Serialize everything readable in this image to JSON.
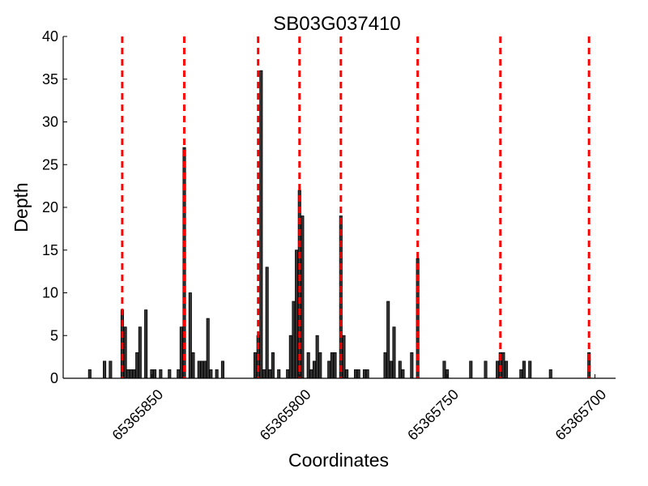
{
  "chart_data": {
    "type": "bar",
    "title": "SB03G037410",
    "xlabel": "Coordinates",
    "ylabel": "Depth",
    "xlim": [
      65365880,
      65365693
    ],
    "ylim": [
      0,
      40
    ],
    "x_inverted": true,
    "grid": false,
    "bar_color": "#333333",
    "marker_color": "#ff0000",
    "yticks": [
      0,
      5,
      10,
      15,
      20,
      25,
      30,
      35,
      40
    ],
    "xticks": [
      65365850,
      65365800,
      65365750,
      65365700
    ],
    "xtick_labels": [
      "65365850",
      "65365800",
      "65365750",
      "65365700"
    ],
    "ytick_labels": [
      "0",
      "5",
      "10",
      "15",
      "20",
      "25",
      "30",
      "35",
      "40"
    ],
    "boundaries": [
      65365860,
      65365839,
      65365814,
      65365800,
      65365786,
      65365760,
      65365732,
      65365702
    ],
    "coverage": [
      {
        "x": 65365871,
        "y": 1
      },
      {
        "x": 65365866,
        "y": 2
      },
      {
        "x": 65365864,
        "y": 2
      },
      {
        "x": 65365860,
        "y": 8
      },
      {
        "x": 65365859,
        "y": 6
      },
      {
        "x": 65365858,
        "y": 1
      },
      {
        "x": 65365857,
        "y": 1
      },
      {
        "x": 65365856,
        "y": 1
      },
      {
        "x": 65365855,
        "y": 3
      },
      {
        "x": 65365854,
        "y": 6
      },
      {
        "x": 65365852,
        "y": 8
      },
      {
        "x": 65365850,
        "y": 1
      },
      {
        "x": 65365849,
        "y": 1
      },
      {
        "x": 65365847,
        "y": 1
      },
      {
        "x": 65365844,
        "y": 1
      },
      {
        "x": 65365841,
        "y": 1
      },
      {
        "x": 65365840,
        "y": 6
      },
      {
        "x": 65365839,
        "y": 27
      },
      {
        "x": 65365837,
        "y": 10
      },
      {
        "x": 65365836,
        "y": 3
      },
      {
        "x": 65365834,
        "y": 2
      },
      {
        "x": 65365833,
        "y": 2
      },
      {
        "x": 65365832,
        "y": 2
      },
      {
        "x": 65365831,
        "y": 7
      },
      {
        "x": 65365830,
        "y": 1
      },
      {
        "x": 65365828,
        "y": 1
      },
      {
        "x": 65365826,
        "y": 2
      },
      {
        "x": 65365815,
        "y": 3
      },
      {
        "x": 65365814,
        "y": 5
      },
      {
        "x": 65365813,
        "y": 36
      },
      {
        "x": 65365812,
        "y": 1
      },
      {
        "x": 65365811,
        "y": 13
      },
      {
        "x": 65365810,
        "y": 1
      },
      {
        "x": 65365809,
        "y": 3
      },
      {
        "x": 65365807,
        "y": 1
      },
      {
        "x": 65365804,
        "y": 1
      },
      {
        "x": 65365803,
        "y": 5
      },
      {
        "x": 65365802,
        "y": 9
      },
      {
        "x": 65365801,
        "y": 15
      },
      {
        "x": 65365800,
        "y": 22
      },
      {
        "x": 65365799,
        "y": 19
      },
      {
        "x": 65365797,
        "y": 3
      },
      {
        "x": 65365796,
        "y": 1
      },
      {
        "x": 65365795,
        "y": 2
      },
      {
        "x": 65365794,
        "y": 5
      },
      {
        "x": 65365793,
        "y": 3
      },
      {
        "x": 65365790,
        "y": 2
      },
      {
        "x": 65365789,
        "y": 3
      },
      {
        "x": 65365788,
        "y": 3
      },
      {
        "x": 65365786,
        "y": 19
      },
      {
        "x": 65365785,
        "y": 5
      },
      {
        "x": 65365784,
        "y": 1
      },
      {
        "x": 65365781,
        "y": 1
      },
      {
        "x": 65365780,
        "y": 1
      },
      {
        "x": 65365778,
        "y": 1
      },
      {
        "x": 65365777,
        "y": 1
      },
      {
        "x": 65365771,
        "y": 3
      },
      {
        "x": 65365770,
        "y": 9
      },
      {
        "x": 65365769,
        "y": 2
      },
      {
        "x": 65365768,
        "y": 6
      },
      {
        "x": 65365766,
        "y": 2
      },
      {
        "x": 65365765,
        "y": 1
      },
      {
        "x": 65365762,
        "y": 3
      },
      {
        "x": 65365760,
        "y": 14
      },
      {
        "x": 65365751,
        "y": 2
      },
      {
        "x": 65365750,
        "y": 1
      },
      {
        "x": 65365742,
        "y": 2
      },
      {
        "x": 65365737,
        "y": 2
      },
      {
        "x": 65365733,
        "y": 2
      },
      {
        "x": 65365732,
        "y": 3
      },
      {
        "x": 65365731,
        "y": 3
      },
      {
        "x": 65365730,
        "y": 2
      },
      {
        "x": 65365725,
        "y": 1
      },
      {
        "x": 65365724,
        "y": 2
      },
      {
        "x": 65365722,
        "y": 2
      },
      {
        "x": 65365715,
        "y": 1
      },
      {
        "x": 65365702,
        "y": 3
      }
    ]
  }
}
